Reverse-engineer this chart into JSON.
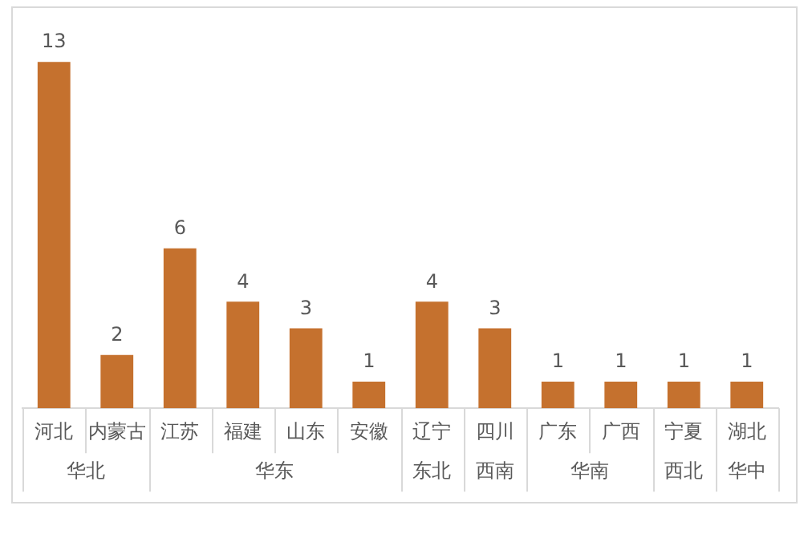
{
  "chart_data": {
    "type": "bar",
    "categories": [
      "河北",
      "内蒙古",
      "江苏",
      "福建",
      "山东",
      "安徽",
      "辽宁",
      "四川",
      "广东",
      "广西",
      "宁夏",
      "湖北"
    ],
    "data_labels": true,
    "grid": false,
    "legend": false,
    "series": [
      {
        "name": "华北",
        "color": "#c5712e",
        "values": [
          13,
          2,
          null,
          null,
          null,
          null,
          null,
          null,
          null,
          null,
          null,
          null
        ]
      },
      {
        "name": "华东",
        "color": "#c5712e",
        "values": [
          null,
          null,
          6,
          4,
          3,
          1,
          null,
          null,
          null,
          null,
          null,
          null
        ]
      },
      {
        "name": "东北",
        "color": "#c5712e",
        "values": [
          null,
          null,
          null,
          null,
          null,
          null,
          4,
          null,
          null,
          null,
          null,
          null
        ]
      },
      {
        "name": "西南",
        "color": "#c5712e",
        "values": [
          null,
          null,
          null,
          null,
          null,
          null,
          null,
          3,
          null,
          null,
          null,
          null
        ]
      },
      {
        "name": "华南",
        "color": "#c5712e",
        "values": [
          null,
          null,
          null,
          null,
          null,
          null,
          null,
          null,
          1,
          1,
          null,
          null
        ]
      },
      {
        "name": "西北",
        "color": "#c5712e",
        "values": [
          null,
          null,
          null,
          null,
          null,
          null,
          null,
          null,
          null,
          null,
          1,
          null
        ]
      },
      {
        "name": "华中",
        "color": "#c5712e",
        "values": [
          null,
          null,
          null,
          null,
          null,
          null,
          null,
          null,
          null,
          null,
          null,
          1
        ]
      }
    ]
  }
}
